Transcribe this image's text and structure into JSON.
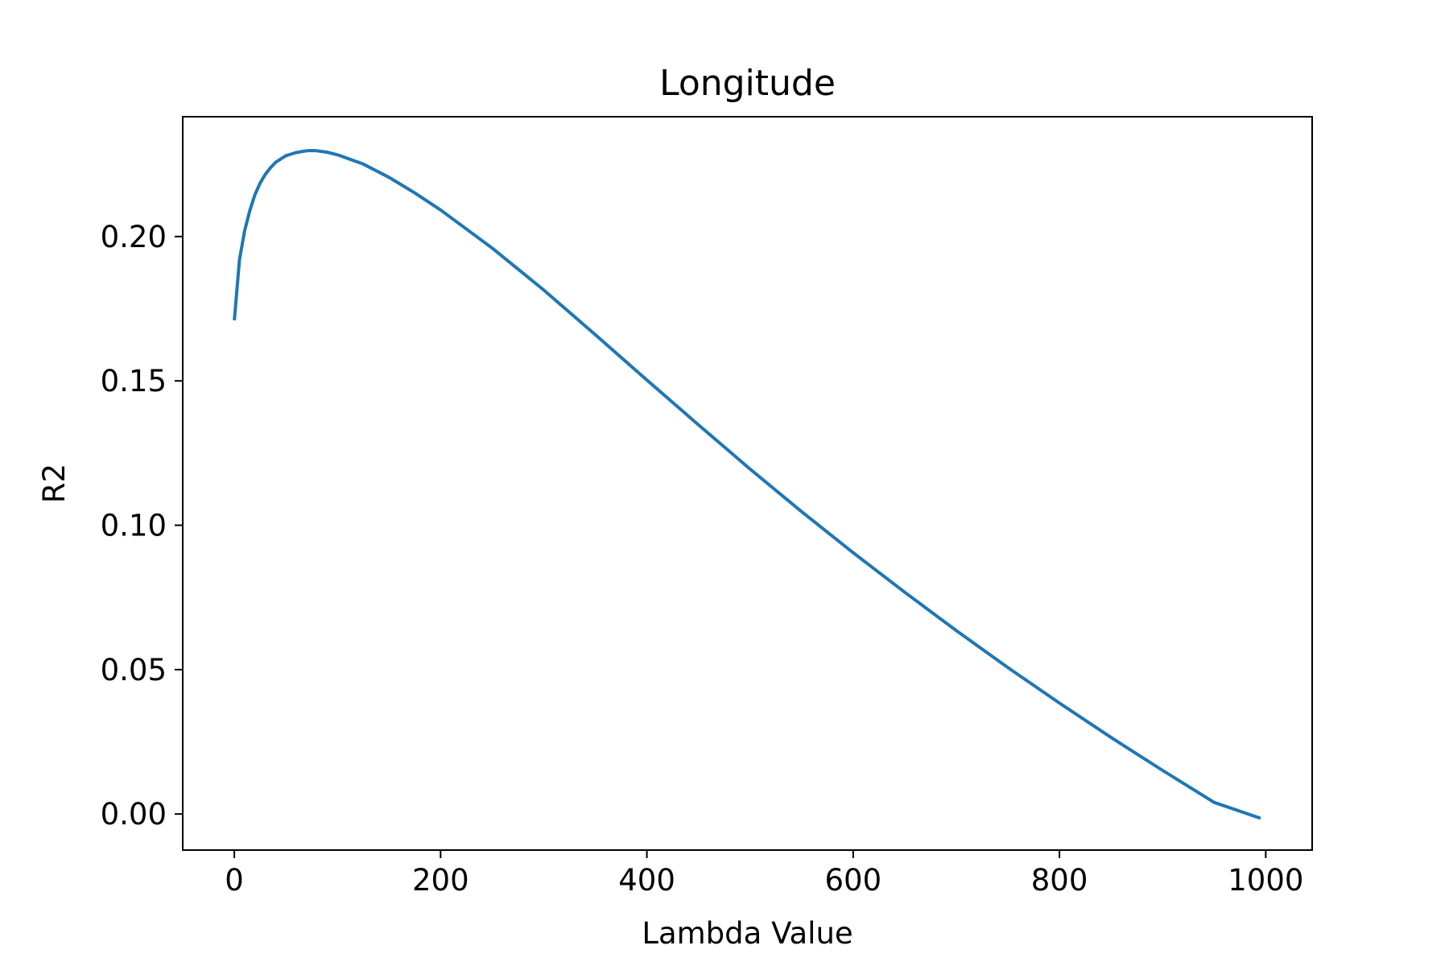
{
  "chart_data": {
    "type": "line",
    "title": "Longitude",
    "xlabel": "Lambda Value",
    "ylabel": "R2",
    "xlim": [
      -50,
      1045
    ],
    "ylim": [
      -0.0125,
      0.2415
    ],
    "xticks": [
      0,
      200,
      400,
      600,
      800,
      1000
    ],
    "xtick_labels": [
      "0",
      "200",
      "400",
      "600",
      "800",
      "1000"
    ],
    "yticks": [
      0.0,
      0.05,
      0.1,
      0.15,
      0.2
    ],
    "ytick_labels": [
      "0.00",
      "0.05",
      "0.10",
      "0.15",
      "0.20"
    ],
    "grid": false,
    "legend": "none",
    "series": [
      {
        "color": "#1f77b4",
        "x": [
          0,
          5,
          10,
          15,
          20,
          25,
          30,
          35,
          40,
          50,
          60,
          70,
          75,
          80,
          90,
          100,
          125,
          150,
          175,
          200,
          250,
          300,
          350,
          400,
          450,
          500,
          550,
          600,
          650,
          700,
          750,
          800,
          850,
          900,
          950,
          995
        ],
        "y": [
          0.171,
          0.192,
          0.202,
          0.209,
          0.2145,
          0.2185,
          0.2215,
          0.2238,
          0.2257,
          0.228,
          0.2291,
          0.2297,
          0.2298,
          0.2297,
          0.2292,
          0.2283,
          0.2251,
          0.2205,
          0.2151,
          0.2092,
          0.196,
          0.1815,
          0.166,
          0.1503,
          0.1348,
          0.1195,
          0.1047,
          0.0905,
          0.0768,
          0.0635,
          0.0507,
          0.0384,
          0.0265,
          0.0151,
          0.004,
          -0.0015
        ]
      }
    ]
  }
}
